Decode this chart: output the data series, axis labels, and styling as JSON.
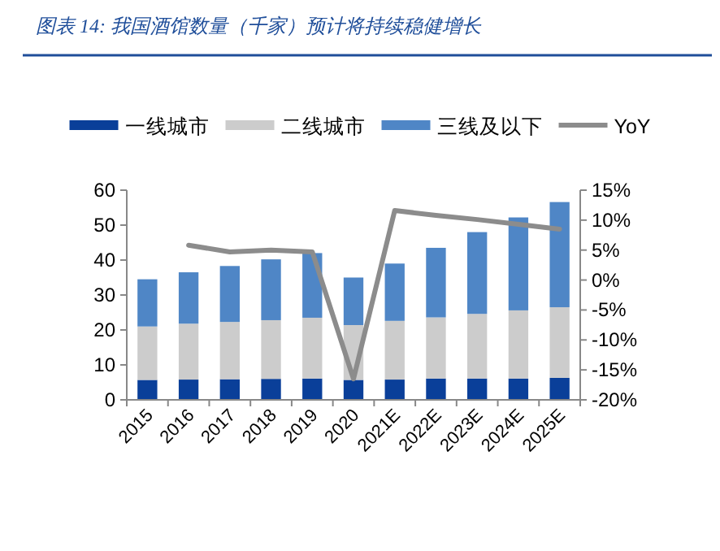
{
  "chart_data": {
    "type": "bar",
    "title": "图表 14: 我国酒馆数量（千家）预计将持续稳健增长",
    "categories": [
      "2015",
      "2016",
      "2017",
      "2018",
      "2019",
      "2020",
      "2021E",
      "2022E",
      "2023E",
      "2024E",
      "2025E"
    ],
    "stacked": true,
    "legend": "top",
    "series": [
      {
        "name": "一线城市",
        "color": "#0a3f99",
        "values": [
          5.7,
          5.8,
          5.9,
          6.0,
          6.1,
          5.7,
          5.8,
          6.1,
          6.1,
          6.1,
          6.3
        ]
      },
      {
        "name": "二线城市",
        "color": "#cccccc",
        "values": [
          15.3,
          16.0,
          16.4,
          16.8,
          17.4,
          15.7,
          16.8,
          17.5,
          18.5,
          19.5,
          20.2
        ]
      },
      {
        "name": "三线及以下",
        "color": "#4f86c6",
        "values": [
          13.5,
          14.7,
          16.0,
          17.4,
          18.5,
          13.6,
          16.4,
          19.9,
          23.4,
          26.6,
          30.1
        ]
      },
      {
        "name": "YoY",
        "type": "line",
        "axis": "y2",
        "color": "#8c8c8c",
        "values": [
          null,
          5.8,
          4.7,
          5.0,
          4.7,
          -16.5,
          11.6,
          10.8,
          10.1,
          9.3,
          8.5
        ]
      }
    ],
    "ylim": [
      0,
      60
    ],
    "yticks": [
      0,
      10,
      20,
      30,
      40,
      50,
      60
    ],
    "y2lim": [
      -20,
      15
    ],
    "y2ticks": [
      {
        "value": -20,
        "label": "-20%"
      },
      {
        "value": -15,
        "label": "-15%"
      },
      {
        "value": -10,
        "label": "-10%"
      },
      {
        "value": -5,
        "label": "-5%"
      },
      {
        "value": 0,
        "label": "0%"
      },
      {
        "value": 5,
        "label": "5%"
      },
      {
        "value": 10,
        "label": "10%"
      },
      {
        "value": 15,
        "label": "15%"
      }
    ]
  }
}
